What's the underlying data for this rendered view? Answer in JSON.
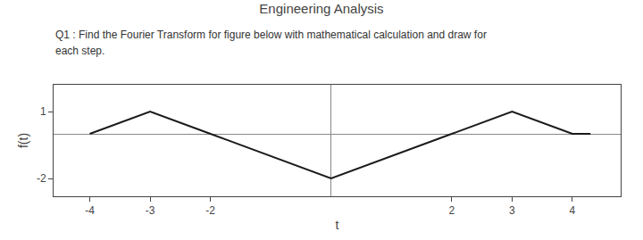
{
  "chart_data": {
    "type": "line",
    "title": "Engineering Analysis",
    "annotations": [
      "Q1 : Find the Fourier Transform for figure below with mathematical calculation and draw for",
      "each step."
    ],
    "xlabel": "t",
    "ylabel": "f(t)",
    "x": [
      -4,
      -4,
      -3,
      -2,
      0,
      2,
      2,
      3,
      4,
      4.3
    ],
    "values": [
      0,
      0,
      1,
      0,
      -2,
      0,
      0,
      1,
      0,
      0
    ],
    "color": "#1a1a1a",
    "xlim": [
      -4.6,
      4.8
    ],
    "ylim": [
      -2.8,
      2.2
    ],
    "xticks": [
      -4,
      -3,
      -2,
      2,
      3,
      4
    ],
    "yticks": [
      -2,
      1
    ],
    "grid": false
  }
}
